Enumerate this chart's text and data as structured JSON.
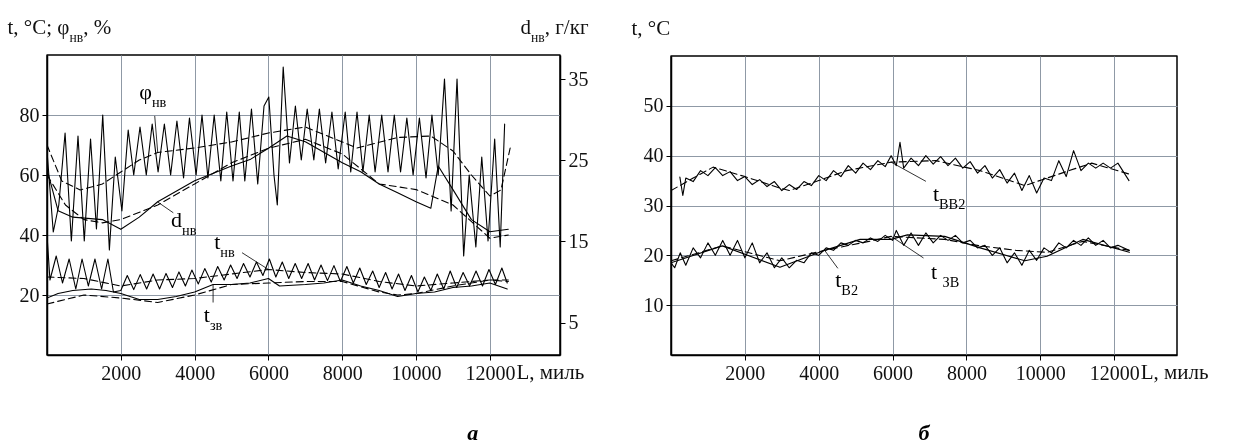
{
  "chart_data": [
    {
      "type": "line",
      "title": "а",
      "ylabel": "t, °C; φ$_{нв}$, %",
      "y2label": "d$_{нв}$, г/кг",
      "xlabel": "L, миль",
      "xlim": [
        0,
        13900
      ],
      "xticks": [
        2000,
        4000,
        6000,
        8000,
        10000,
        12000
      ],
      "ylim": [
        0,
        100
      ],
      "yticks": [
        20,
        40,
        60,
        80
      ],
      "y2lim": [
        1,
        38
      ],
      "y2ticks": [
        5,
        15,
        25,
        35
      ],
      "grid": true,
      "series": [
        {
          "color": "#000000",
          "line_style": "solid",
          "x": [
            0,
            170,
            320,
            490,
            660,
            840,
            1010,
            1180,
            1340,
            1510,
            1690,
            1850,
            2030,
            2200,
            2350,
            2520,
            2690,
            2850,
            3010,
            3180,
            3350,
            3520,
            3700,
            3860,
            4040,
            4200,
            4360,
            4530,
            4710,
            4870,
            5040,
            5210,
            5360,
            5540,
            5710,
            5880,
            6010,
            6150,
            6240,
            6400,
            6570,
            6730,
            6890,
            7050,
            7230,
            7380,
            7550,
            7720,
            7890,
            8080,
            8230,
            8400,
            8560,
            8730,
            8890,
            9070,
            9240,
            9410,
            9580,
            9750,
            9920,
            10090,
            10270,
            10430,
            10600,
            10770,
            10950,
            11110,
            11290,
            11440,
            11620,
            11780,
            11950,
            12130,
            12280,
            12400
          ],
          "values": [
            68,
            41,
            50,
            74,
            38,
            73,
            38,
            72,
            42,
            80,
            35,
            66,
            48,
            75,
            60,
            76,
            60,
            77,
            61,
            77,
            60,
            78,
            59,
            79,
            60,
            80,
            59,
            80,
            58,
            81,
            58,
            81,
            58,
            82,
            57,
            83,
            86,
            60,
            50,
            96,
            64,
            83,
            65,
            82,
            65,
            82,
            64,
            81,
            62,
            81,
            61,
            81,
            61,
            80,
            61,
            80,
            61,
            80,
            61,
            79,
            60,
            79,
            59,
            80,
            60,
            92,
            48,
            92,
            33,
            60,
            36,
            66,
            38,
            72,
            36,
            77
          ]
        },
        {
          "color": "#000000",
          "line_style": "dashed",
          "x": [
            0,
            400,
            900,
            1500,
            2000,
            2500,
            3000,
            4000,
            5000,
            6000,
            7000,
            8400,
            9500,
            10400,
            11000,
            11500,
            12000,
            12300,
            12550
          ],
          "values": [
            70,
            58,
            55,
            57,
            61,
            65,
            67.5,
            69,
            71,
            74,
            76,
            69,
            72.5,
            73,
            68,
            60,
            53,
            55,
            69
          ]
        },
        {
          "color": "#000000",
          "line_style": "solid",
          "axis": "y2",
          "x": [
            0,
            300,
            700,
            1500,
            2000,
            2500,
            3000,
            4000,
            5000,
            5500,
            6000,
            6500,
            7000,
            8000,
            8500,
            9000,
            9500,
            10000,
            10400,
            10600,
            11000,
            11500,
            12000,
            12500
          ],
          "values": [
            23.9,
            18.8,
            18.0,
            17.7,
            16.5,
            18.0,
            19.9,
            22.5,
            24.3,
            25.1,
            26.5,
            28.0,
            27.3,
            24.7,
            23.6,
            22.1,
            21.0,
            19.9,
            19.1,
            24.3,
            21.4,
            17.7,
            16.2,
            16.5
          ]
        },
        {
          "color": "#000000",
          "line_style": "dashed",
          "axis": "y2",
          "x": [
            0,
            500,
            1000,
            1500,
            2000,
            3000,
            4000,
            5000,
            6000,
            7000,
            8000,
            9000,
            10000,
            11000,
            12000,
            12500
          ],
          "values": [
            23.2,
            19.5,
            17.7,
            17.3,
            17.7,
            19.5,
            22.1,
            24.7,
            26.5,
            27.6,
            25.8,
            22.1,
            21.4,
            19.5,
            15.4,
            15.8
          ]
        },
        {
          "color": "#000000",
          "line_style": "solid",
          "x": [
            0,
            80,
            250,
            420,
            600,
            780,
            950,
            1120,
            1300,
            1480,
            1650,
            1800,
            2000,
            2175,
            2350,
            2525,
            2700,
            2875,
            3050,
            3225,
            3400,
            3575,
            3750,
            3925,
            4100,
            4275,
            4450,
            4625,
            4800,
            4975,
            5150,
            5325,
            5500,
            5675,
            5850,
            6025,
            6200,
            6375,
            6550,
            6725,
            6900,
            7075,
            7250,
            7425,
            7600,
            7775,
            7950,
            8125,
            8300,
            8475,
            8650,
            8825,
            9000,
            9175,
            9350,
            9525,
            9700,
            9875,
            10050,
            10225,
            10400,
            10575,
            10750,
            10925,
            11100,
            11275,
            11450,
            11625,
            11800,
            11975,
            12150,
            12325,
            12470
          ],
          "values": [
            40,
            25,
            33,
            24,
            32,
            22,
            32,
            23,
            32,
            22,
            32,
            21,
            21.5,
            26.5,
            21.8,
            26.8,
            22,
            27,
            22,
            27.2,
            22.5,
            27.7,
            23,
            28.3,
            23.7,
            28.8,
            24.3,
            29.5,
            25,
            30,
            25.5,
            30.5,
            26,
            31,
            26.5,
            32,
            26,
            31,
            25.5,
            30.5,
            25.5,
            30.5,
            25,
            30,
            24.8,
            29.8,
            24.5,
            29.5,
            24,
            29,
            23.5,
            28,
            22.5,
            27.5,
            22,
            27,
            21.5,
            26.5,
            21,
            26,
            21.5,
            27,
            22,
            28,
            22.5,
            27.5,
            23,
            28,
            23,
            28.5,
            23.5,
            29,
            24
          ]
        },
        {
          "color": "#000000",
          "line_style": "dashed",
          "x": [
            0,
            1000,
            2000,
            3000,
            4000,
            5000,
            6000,
            7000,
            8000,
            9000,
            10000,
            11000,
            12000,
            12500
          ],
          "values": [
            26,
            25.5,
            23,
            25,
            25.5,
            27,
            28.5,
            27.5,
            27,
            24.5,
            23,
            24,
            25,
            24.5
          ]
        },
        {
          "color": "#000000",
          "line_style": "solid",
          "x": [
            0,
            300,
            700,
            1200,
            1600,
            2000,
            2500,
            3000,
            3500,
            4000,
            4500,
            5000,
            5500,
            6000,
            6300,
            7000,
            7500,
            8000,
            8500,
            9000,
            9500,
            10000,
            10500,
            11000,
            11500,
            12000,
            12470
          ],
          "values": [
            19,
            20.5,
            21.5,
            22,
            21.5,
            20.5,
            18.5,
            18.5,
            19.5,
            21,
            23.5,
            23.5,
            24,
            25.5,
            23,
            23.5,
            24,
            25,
            23,
            21.5,
            19.5,
            20.5,
            21,
            22.5,
            23,
            24,
            22
          ]
        },
        {
          "color": "#000000",
          "line_style": "dashed",
          "x": [
            0,
            1000,
            2000,
            3000,
            4000,
            5000,
            6000,
            7000,
            8000,
            9000,
            9500,
            10000,
            11000,
            12000,
            12500
          ],
          "values": [
            17,
            20,
            19,
            17.5,
            20,
            23.5,
            24,
            24.5,
            24.5,
            21,
            20,
            20.5,
            23,
            25,
            25
          ]
        }
      ],
      "annotations": [
        {
          "text": "φ$_{нв}$",
          "x": 3000,
          "y": 67.5
        },
        {
          "text": "d$_{нв}$",
          "x": 3000,
          "y": 51
        },
        {
          "text": "t$_{нв}$",
          "x": 6000,
          "y": 28.5
        },
        {
          "text": "t$_{зв}$",
          "x": 4500,
          "y": 23.5
        }
      ]
    },
    {
      "type": "line",
      "title": "б",
      "ylabel": "t, °C",
      "xlabel": "L, миль",
      "xlim": [
        0,
        13700
      ],
      "xticks": [
        2000,
        4000,
        6000,
        8000,
        10000,
        12000
      ],
      "ylim": [
        0,
        60
      ],
      "yticks": [
        10,
        20,
        30,
        40,
        50
      ],
      "grid": true,
      "series": [
        {
          "color": "#000000",
          "line_style": "solid",
          "x": [
            240,
            320,
            400,
            600,
            800,
            1000,
            1200,
            1400,
            1600,
            1800,
            2000,
            2200,
            2400,
            2600,
            2800,
            3000,
            3200,
            3400,
            3600,
            3800,
            4000,
            4200,
            4400,
            4600,
            4800,
            5000,
            5200,
            5400,
            5600,
            5800,
            5960,
            6100,
            6200,
            6300,
            6500,
            6700,
            6900,
            7100,
            7300,
            7500,
            7700,
            7900,
            8100,
            8300,
            8500,
            8700,
            8900,
            9100,
            9300,
            9500,
            9700,
            9900,
            10100,
            10300,
            10500,
            10700,
            10900,
            11100,
            11300,
            11500,
            11700,
            11900,
            12100,
            12400
          ],
          "values": [
            35.7,
            32.0,
            35.5,
            34.8,
            37.0,
            36.0,
            37.6,
            36.0,
            36.8,
            35.0,
            35.8,
            34.2,
            35.2,
            33.8,
            34.8,
            33.0,
            34.2,
            33.2,
            34.8,
            34.0,
            36.0,
            35.0,
            37.0,
            35.8,
            38.0,
            36.5,
            38.5,
            37.2,
            39.0,
            37.8,
            40.0,
            38.0,
            42.7,
            37.5,
            39.5,
            38.0,
            40.0,
            38.3,
            39.8,
            38.0,
            39.5,
            37.5,
            38.8,
            36.5,
            38.0,
            35.5,
            37.2,
            34.5,
            36.5,
            33.0,
            36.0,
            32.5,
            35.5,
            35.0,
            39.0,
            35.8,
            41.0,
            37.0,
            38.5,
            37.5,
            38.5,
            37.5,
            38.5,
            35.0
          ]
        },
        {
          "color": "#000000",
          "line_style": "dashed",
          "x": [
            0,
            600,
            1140,
            2000,
            2950,
            3200,
            4000,
            4760,
            5960,
            7170,
            8370,
            9580,
            10780,
            11390,
            12410
          ],
          "values": [
            33.0,
            35.5,
            37.7,
            35.8,
            33.5,
            33.0,
            35.0,
            37.0,
            38.7,
            39.0,
            37.0,
            34.0,
            37.0,
            38.5,
            36.3
          ]
        },
        {
          "color": "#000000",
          "line_style": "solid",
          "x": [
            0,
            1390,
            2950,
            4160,
            5120,
            5960,
            6400,
            7410,
            8370,
            9580,
            10180,
            11150,
            12410
          ],
          "values": [
            18.5,
            21.9,
            17.6,
            21,
            23.2,
            23.2,
            24.1,
            23.8,
            21.5,
            18.9,
            19.8,
            23.2,
            20.6
          ]
        },
        {
          "color": "#000000",
          "line_style": "dashed",
          "x": [
            0,
            1390,
            2950,
            4160,
            5360,
            5960,
            7410,
            8370,
            9340,
            10180,
            11150,
            12410
          ],
          "values": [
            18.9,
            21.9,
            18.9,
            21,
            22.8,
            23.8,
            23.2,
            21.9,
            21,
            20.6,
            22.8,
            21
          ]
        },
        {
          "color": "#000000",
          "line_style": "solid",
          "x": [
            0,
            100,
            250,
            400,
            600,
            800,
            1000,
            1200,
            1400,
            1600,
            1800,
            2000,
            2200,
            2400,
            2600,
            2800,
            3000,
            3200,
            3400,
            3600,
            3800,
            4000,
            4200,
            4400,
            4600,
            4800,
            5000,
            5200,
            5400,
            5600,
            5800,
            6000,
            6100,
            6300,
            6500,
            6700,
            6900,
            7100,
            7300,
            7500,
            7700,
            7900,
            8100,
            8300,
            8500,
            8700,
            8900,
            9100,
            9300,
            9500,
            9700,
            9900,
            10100,
            10300,
            10500,
            10700,
            10900,
            11100,
            11300,
            11500,
            11700,
            11900,
            12100,
            12400
          ],
          "values": [
            18.5,
            17.5,
            20.5,
            18.0,
            21.5,
            19.5,
            22.5,
            20.0,
            23.0,
            20.0,
            23.0,
            19.5,
            22.5,
            18.5,
            20.5,
            17.5,
            19.5,
            17.5,
            19.0,
            18.5,
            20.5,
            20.0,
            21.5,
            21.0,
            22.5,
            22.0,
            23.0,
            22.5,
            23.5,
            22.8,
            24.0,
            23.0,
            25.0,
            22.0,
            24.5,
            22.0,
            24.5,
            22.5,
            24.0,
            23.0,
            24.0,
            22.5,
            23.0,
            21.5,
            22.0,
            20.0,
            21.5,
            18.5,
            20.5,
            18.0,
            21.0,
            19.0,
            21.5,
            20.5,
            22.5,
            21.5,
            23.0,
            22.0,
            23.5,
            22.0,
            23.0,
            21.5,
            22.0,
            21.0
          ]
        }
      ],
      "annotations": [
        {
          "text": "t$_{ВВ2}$",
          "x": 5960,
          "y": 38.7
        },
        {
          "text": "t$_{В2}$",
          "x": 4160,
          "y": 21
        },
        {
          "text": "t $_{ЗВ}$",
          "x": 5960,
          "y": 23.8
        }
      ]
    }
  ]
}
